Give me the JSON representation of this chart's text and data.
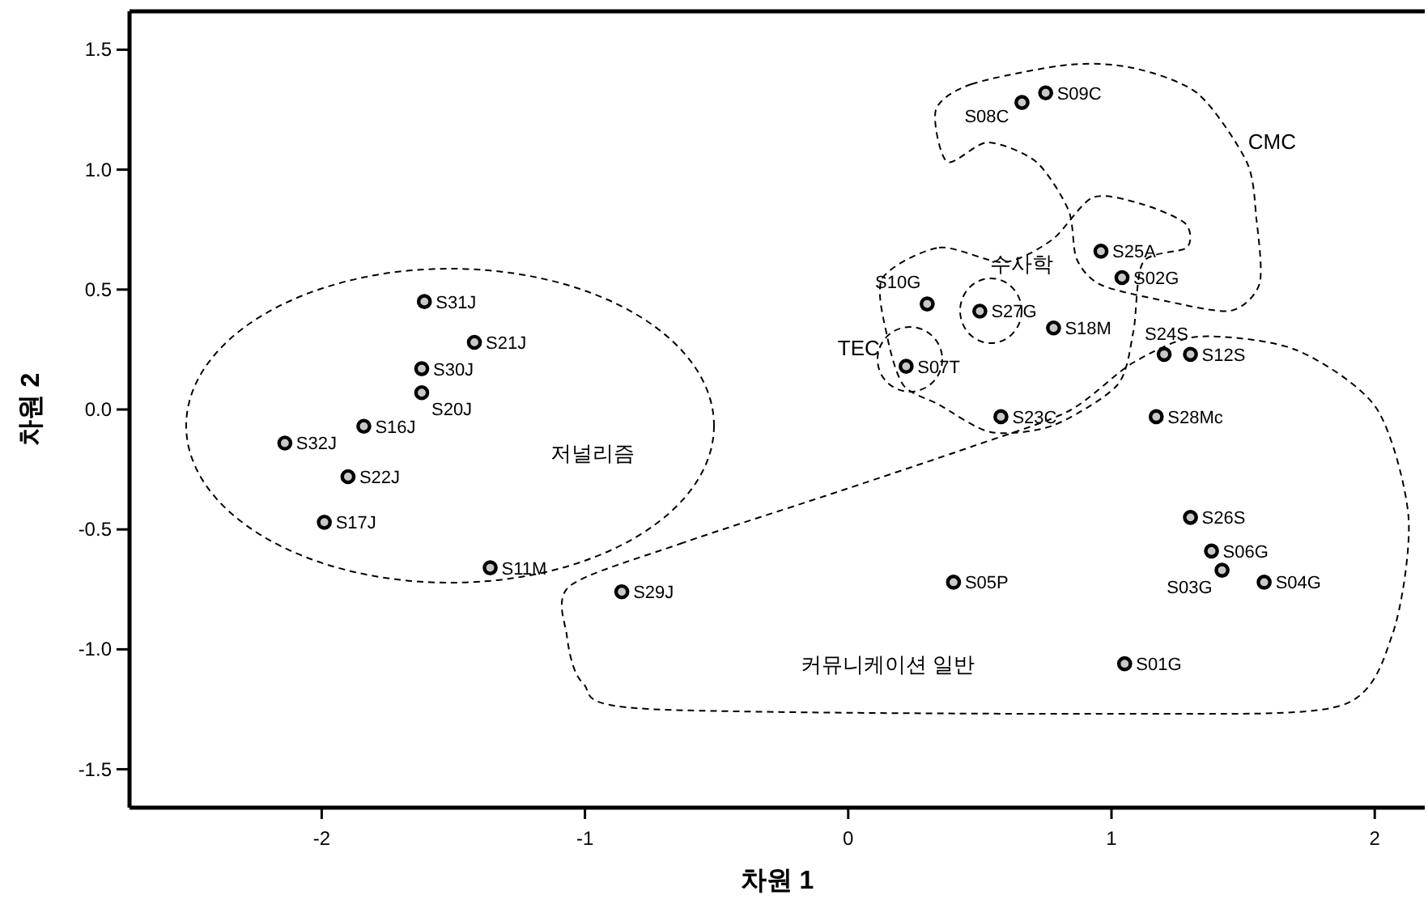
{
  "chart_data": {
    "type": "scatter",
    "xlabel": "차원 1",
    "ylabel": "차원 2",
    "xlim": [
      -2.73,
      2.19
    ],
    "ylim": [
      -1.66,
      1.66
    ],
    "xticks": [
      -2,
      -1,
      0,
      1,
      2
    ],
    "yticks": [
      {
        "value": 1.5,
        "label": "1.5"
      },
      {
        "value": 1,
        "label": "1.0"
      },
      {
        "value": 0.5,
        "label": "0.5"
      },
      {
        "value": 0,
        "label": "0.0"
      },
      {
        "value": -0.5,
        "label": "-0.5"
      },
      {
        "value": -1,
        "label": "-1.0"
      },
      {
        "value": -1.5,
        "label": "-1.5"
      }
    ],
    "grid": false,
    "marker": "circle",
    "annotations": [
      "저널리즘",
      "CMC",
      "수사학",
      "TEC",
      "커뮤니케이션 일반",
      {
        "text": "S31J",
        "x": -1.61,
        "y": 0.45
      },
      {
        "text": "S21J",
        "x": -1.42,
        "y": 0.28
      },
      {
        "text": "S30J",
        "x": -1.62,
        "y": 0.17
      },
      {
        "text": "S20J",
        "x": -1.62,
        "y": 0.07
      },
      {
        "text": "S16J",
        "x": -1.84,
        "y": -0.07
      },
      {
        "text": "S32J",
        "x": -2.14,
        "y": -0.14
      },
      {
        "text": "S22J",
        "x": -1.9,
        "y": -0.28
      },
      {
        "text": "S17J",
        "x": -1.99,
        "y": -0.47
      },
      {
        "text": "S11M",
        "x": -1.36,
        "y": -0.66
      },
      {
        "text": "S29J",
        "x": -0.86,
        "y": -0.76
      },
      {
        "text": "S05P",
        "x": 0.4,
        "y": -0.72
      },
      {
        "text": "S01G",
        "x": 1.05,
        "y": -1.06
      },
      {
        "text": "S26S",
        "x": 1.3,
        "y": -0.45
      },
      {
        "text": "S06G",
        "x": 1.38,
        "y": -0.59
      },
      {
        "text": "S03G",
        "x": 1.42,
        "y": -0.67
      },
      {
        "text": "S04G",
        "x": 1.58,
        "y": -0.72
      },
      {
        "text": "S28Mc",
        "x": 1.17,
        "y": -0.03
      },
      {
        "text": "S23C",
        "x": 0.58,
        "y": -0.03
      },
      {
        "text": "S07T",
        "x": 0.22,
        "y": 0.18
      },
      {
        "text": "S10G",
        "x": 0.3,
        "y": 0.44
      },
      {
        "text": "S27G",
        "x": 0.5,
        "y": 0.41
      },
      {
        "text": "S18M",
        "x": 0.78,
        "y": 0.34
      },
      {
        "text": "S24S",
        "x": 1.2,
        "y": 0.23
      },
      {
        "text": "S12S",
        "x": 1.3,
        "y": 0.23
      },
      {
        "text": "S25A",
        "x": 0.96,
        "y": 0.66
      },
      {
        "text": "S02G",
        "x": 1.04,
        "y": 0.55
      },
      {
        "text": "S08C",
        "x": 0.66,
        "y": 1.28
      },
      {
        "text": "S09C",
        "x": 0.75,
        "y": 1.32
      }
    ],
    "series": [
      {
        "color": "#000000",
        "x": [
          -1.61,
          -1.42,
          -1.62,
          -1.62,
          -1.84,
          -2.14,
          -1.9,
          -1.99,
          -1.36,
          -0.86,
          0.4,
          1.05,
          1.3,
          1.38,
          1.42,
          1.58,
          1.17,
          0.58,
          0.22,
          0.3,
          0.5,
          0.78,
          1.2,
          1.3,
          0.96,
          1.04,
          0.66,
          0.75
        ],
        "values": [
          0.45,
          0.28,
          0.17,
          0.07,
          -0.07,
          -0.14,
          -0.28,
          -0.47,
          -0.66,
          -0.76,
          -0.72,
          -1.06,
          -0.45,
          -0.59,
          -0.67,
          -0.72,
          -0.03,
          -0.03,
          0.18,
          0.44,
          0.41,
          0.34,
          0.23,
          0.23,
          0.66,
          0.55,
          1.28,
          1.32
        ]
      }
    ]
  }
}
